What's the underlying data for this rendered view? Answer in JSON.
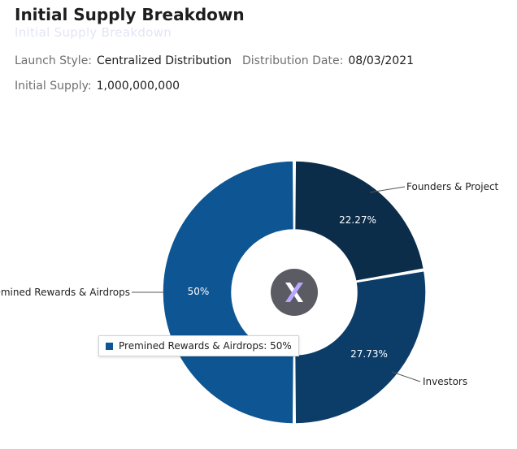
{
  "header": {
    "title": "Initial Supply Breakdown",
    "subtitle_ghost": "Initial Supply Breakdown"
  },
  "meta": {
    "launch_style_label": "Launch Style:",
    "launch_style_value": "Centralized Distribution",
    "distribution_date_label": "Distribution Date:",
    "distribution_date_value": "08/03/2021",
    "initial_supply_label": "Initial Supply:",
    "initial_supply_value": "1,000,000,000"
  },
  "colors": {
    "founders": "#0b2d4a",
    "investors": "#0c3d68",
    "premined": "#0d5593",
    "logo_bg": "#5b5b63"
  },
  "tooltip": {
    "text": "Premined Rewards & Airdrops: 50%"
  },
  "chart_data": {
    "type": "pie",
    "title": "Initial Supply Breakdown",
    "donut": true,
    "slices": [
      {
        "label": "Founders & Project",
        "value": 22.27,
        "value_label": "22.27%"
      },
      {
        "label": "Investors",
        "value": 27.73,
        "value_label": "27.73%"
      },
      {
        "label": "Premined Rewards & Airdrops",
        "value": 50,
        "value_label": "50%"
      }
    ],
    "center_icon": "dydx-logo-icon"
  }
}
